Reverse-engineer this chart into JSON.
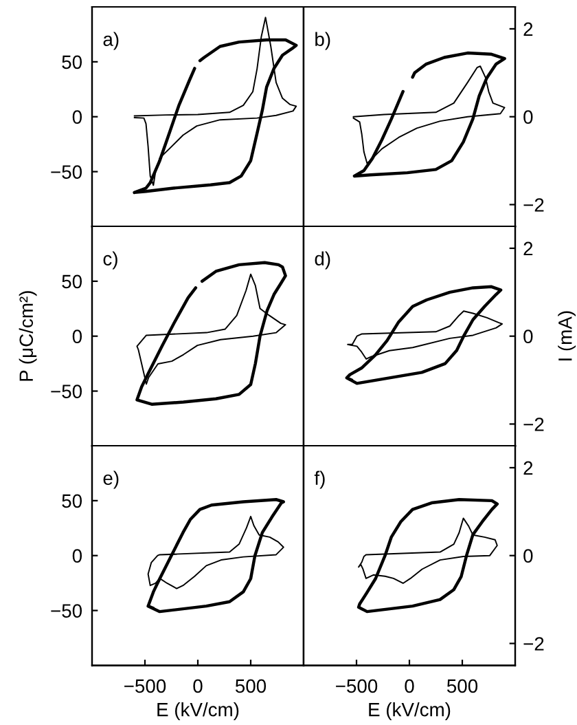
{
  "chart_data": [
    {
      "type": "line",
      "title": "a)",
      "xlim": [
        -1000,
        1000
      ],
      "ylim": [
        -100,
        100
      ],
      "yticks": [
        -50,
        0,
        50
      ],
      "y2lim": [
        -2.5,
        2.5
      ],
      "tick_labels": "y",
      "series": [
        {
          "color": "#000000",
          "x": [
            -600,
            -490,
            -230,
            120,
            300,
            410,
            500,
            560,
            610,
            650,
            720,
            800,
            890,
            930,
            830,
            650,
            390,
            210,
            60,
            20,
            0,
            -30,
            -80,
            -180,
            -270,
            -360,
            -450,
            -490,
            -600
          ],
          "values": [
            -69,
            -68,
            -65,
            -62,
            -60,
            -54,
            -40,
            -15,
            6,
            27,
            44,
            56,
            62,
            65,
            70,
            70,
            68,
            64,
            54,
            51,
            null,
            44,
            33,
            10,
            -15,
            -40,
            -60,
            -65,
            -69
          ]
        },
        {
          "color": "#000000",
          "axis": "y2",
          "x": [
            -600,
            -300,
            0,
            300,
            430,
            520,
            560,
            600,
            640,
            690,
            740,
            800,
            870,
            930,
            900,
            740,
            560,
            210,
            -10,
            -140,
            -270,
            -360,
            -400,
            -420,
            -450,
            -470,
            -490,
            -510,
            -600
          ],
          "values": [
            0.02,
            0.04,
            0.05,
            0.1,
            0.26,
            0.57,
            1.09,
            1.82,
            2.26,
            1.6,
            0.78,
            0.42,
            0.28,
            0.24,
            0.13,
            0.03,
            -0.03,
            -0.07,
            -0.21,
            -0.42,
            -0.73,
            -0.94,
            -1.25,
            -1.56,
            -1.35,
            -0.68,
            -0.16,
            -0.03,
            -0.02
          ]
        }
      ]
    },
    {
      "type": "line",
      "title": "b)",
      "xlim": [
        -1000,
        1000
      ],
      "ylim": [
        -100,
        100
      ],
      "y2lim": [
        -2.5,
        2.5
      ],
      "y2ticks": [
        -2,
        0,
        2
      ],
      "tick_labels": "y2",
      "series": [
        {
          "color": "#000000",
          "x": [
            -520,
            -370,
            -20,
            250,
            400,
            510,
            600,
            660,
            730,
            820,
            900,
            770,
            550,
            330,
            160,
            50,
            30,
            0,
            -60,
            -170,
            -260,
            -350,
            -430,
            -520
          ],
          "values": [
            -54,
            -53,
            -51,
            -48,
            -40,
            -23,
            -2,
            19,
            35,
            48,
            53,
            57,
            58,
            54,
            48,
            40,
            36,
            null,
            23,
            -2,
            -21,
            -38,
            -49,
            -54
          ]
        },
        {
          "color": "#000000",
          "axis": "y2",
          "x": [
            -530,
            -240,
            250,
            420,
            550,
            640,
            670,
            720,
            750,
            790,
            900,
            860,
            550,
            290,
            70,
            -100,
            -260,
            -350,
            -400,
            -430,
            -450,
            -470,
            -530
          ],
          "values": [
            0.0,
            0.05,
            0.1,
            0.31,
            0.78,
            1.12,
            1.15,
            0.89,
            0.57,
            0.31,
            0.21,
            0.07,
            0.0,
            -0.1,
            -0.26,
            -0.47,
            -0.73,
            -0.95,
            -1.06,
            -0.8,
            -0.4,
            -0.12,
            -0.03
          ]
        }
      ]
    },
    {
      "type": "line",
      "title": "c)",
      "ylabel": "P (μC/cm²)",
      "xlim": [
        -1000,
        1000
      ],
      "ylim": [
        -100,
        100
      ],
      "yticks": [
        -50,
        0,
        50
      ],
      "y2lim": [
        -2.5,
        2.5
      ],
      "tick_labels": "y",
      "series": [
        {
          "color": "#000000",
          "x": [
            -575,
            -436,
            -136,
            171,
            390,
            500,
            544,
            588,
            654,
            720,
            785,
            829,
            800,
            763,
            632,
            390,
            171,
            40,
            0,
            -20,
            -92,
            -224,
            -333,
            -443,
            -531,
            -575
          ],
          "values": [
            -58,
            -62,
            -60,
            -57,
            -53,
            -44,
            -25,
            0,
            23,
            38,
            48,
            55,
            63,
            65,
            67,
            65,
            59,
            50,
            null,
            44,
            35,
            12,
            -8,
            -29,
            -46,
            -58
          ]
        },
        {
          "color": "#000000",
          "axis": "y2",
          "x": [
            -575,
            -487,
            83,
            259,
            368,
            456,
            500,
            544,
            588,
            676,
            785,
            829,
            741,
            522,
            215,
            -4,
            -136,
            -246,
            -377,
            -465,
            -487,
            -531,
            -562,
            -575,
            -550
          ],
          "values": [
            -0.23,
            0.02,
            0.08,
            0.16,
            0.47,
            1.04,
            1.41,
            1.15,
            0.63,
            0.47,
            0.29,
            0.26,
            0.08,
            0.0,
            -0.08,
            -0.21,
            -0.42,
            -0.57,
            -0.63,
            -0.94,
            -1.09,
            -0.63,
            -0.31,
            -0.23,
            -0.16
          ]
        }
      ]
    },
    {
      "type": "line",
      "title": "d)",
      "y2label": "I (mA)",
      "xlim": [
        -1000,
        1000
      ],
      "ylim": [
        -100,
        100
      ],
      "y2lim": [
        -2.5,
        2.5
      ],
      "y2ticks": [
        -2,
        0,
        2
      ],
      "tick_labels": "y2",
      "series": [
        {
          "color": "#000000",
          "x": [
            -592,
            -496,
            -189,
            118,
            338,
            447,
            513,
            601,
            711,
            820,
            864,
            776,
            601,
            382,
            163,
            31,
            -101,
            -211,
            -320,
            -452,
            -562,
            -592,
            -545
          ],
          "values": [
            -38,
            -43,
            -38,
            -33,
            -25,
            -13,
            0,
            15,
            27,
            38,
            42,
            45,
            44,
            40,
            33,
            27,
            13,
            -4,
            -17,
            -29,
            -35,
            -38,
            -40
          ]
        },
        {
          "color": "#000000",
          "axis": "y2",
          "x": [
            -583,
            -540,
            -496,
            -452,
            250,
            382,
            469,
            513,
            601,
            733,
            842,
            877,
            820,
            601,
            382,
            31,
            -189,
            -364,
            -408,
            -452,
            -496,
            -583,
            -560
          ],
          "values": [
            -0.19,
            -0.19,
            0.0,
            0.05,
            0.1,
            0.23,
            0.47,
            0.57,
            0.52,
            0.42,
            0.31,
            0.28,
            0.19,
            0.02,
            -0.05,
            -0.26,
            -0.33,
            -0.47,
            -0.52,
            -0.36,
            -0.23,
            -0.19,
            -0.19
          ]
        }
      ]
    },
    {
      "type": "line",
      "title": "e)",
      "xlabel": "E (kV/cm)",
      "xlim": [
        -1000,
        1000
      ],
      "xticks": [
        -500,
        0,
        500
      ],
      "ylim": [
        -100,
        100
      ],
      "yticks": [
        -50,
        0,
        50
      ],
      "y2lim": [
        -2.5,
        2.5
      ],
      "tick_labels": "xy",
      "series": [
        {
          "color": "#000000",
          "x": [
            -470,
            -360,
            80,
            300,
            430,
            500,
            540,
            610,
            700,
            790,
            810,
            740,
            430,
            130,
            20,
            -70,
            -140,
            -250,
            -360,
            -420,
            -470,
            -420
          ],
          "values": [
            -46,
            -51,
            -46,
            -42,
            -33,
            -21,
            0,
            21,
            35,
            48,
            49,
            51,
            49,
            46,
            42,
            33,
            21,
            0,
            -21,
            -33,
            -46,
            -48
          ]
        },
        {
          "color": "#000000",
          "axis": "y2",
          "x": [
            -360,
            300,
            390,
            460,
            500,
            530,
            580,
            680,
            760,
            810,
            740,
            430,
            220,
            80,
            -30,
            -140,
            -200,
            -290,
            -360,
            -400,
            -450,
            -470,
            -440,
            -380,
            -360,
            -200
          ],
          "values": [
            0.02,
            0.08,
            0.26,
            0.63,
            0.89,
            0.68,
            0.47,
            0.42,
            0.31,
            0.19,
            0.02,
            -0.03,
            -0.1,
            -0.23,
            -0.47,
            -0.68,
            -0.75,
            -0.63,
            -0.52,
            -0.63,
            -0.68,
            -0.42,
            -0.16,
            0.0,
            0.02,
            0.03
          ]
        }
      ]
    },
    {
      "type": "line",
      "title": "f)",
      "xlabel": "E (kV/cm)",
      "xlim": [
        -1000,
        1000
      ],
      "xticks": [
        -500,
        0,
        500
      ],
      "ylim": [
        -100,
        100
      ],
      "y2lim": [
        -2.5,
        2.5
      ],
      "y2ticks": [
        -2,
        0,
        2
      ],
      "tick_labels": "xy2",
      "series": [
        {
          "color": "#000000",
          "x": [
            -480,
            -400,
            30,
            290,
            420,
            490,
            540,
            600,
            690,
            780,
            830,
            780,
            470,
            210,
            30,
            -80,
            -170,
            -230,
            -320,
            -410,
            -470,
            -480,
            -440
          ],
          "values": [
            -47,
            -51,
            -46,
            -40,
            -31,
            -19,
            0,
            19,
            31,
            42,
            47,
            50,
            51,
            48,
            42,
            31,
            17,
            0,
            -21,
            -35,
            -44,
            -47,
            -49
          ]
        },
        {
          "color": "#000000",
          "axis": "y2",
          "x": [
            -480,
            -450,
            -430,
            -410,
            290,
            420,
            470,
            510,
            560,
            600,
            710,
            810,
            830,
            760,
            510,
            290,
            120,
            10,
            -60,
            -150,
            -230,
            -340,
            -410,
            -440,
            -460,
            -480,
            -455
          ],
          "values": [
            -0.26,
            -0.15,
            -0.02,
            0.02,
            0.08,
            0.26,
            0.52,
            0.85,
            0.67,
            0.47,
            0.42,
            0.36,
            0.23,
            0.0,
            -0.02,
            -0.1,
            -0.31,
            -0.52,
            -0.63,
            -0.52,
            -0.47,
            -0.44,
            -0.52,
            -0.3,
            -0.2,
            -0.26,
            -0.17
          ]
        }
      ]
    }
  ]
}
